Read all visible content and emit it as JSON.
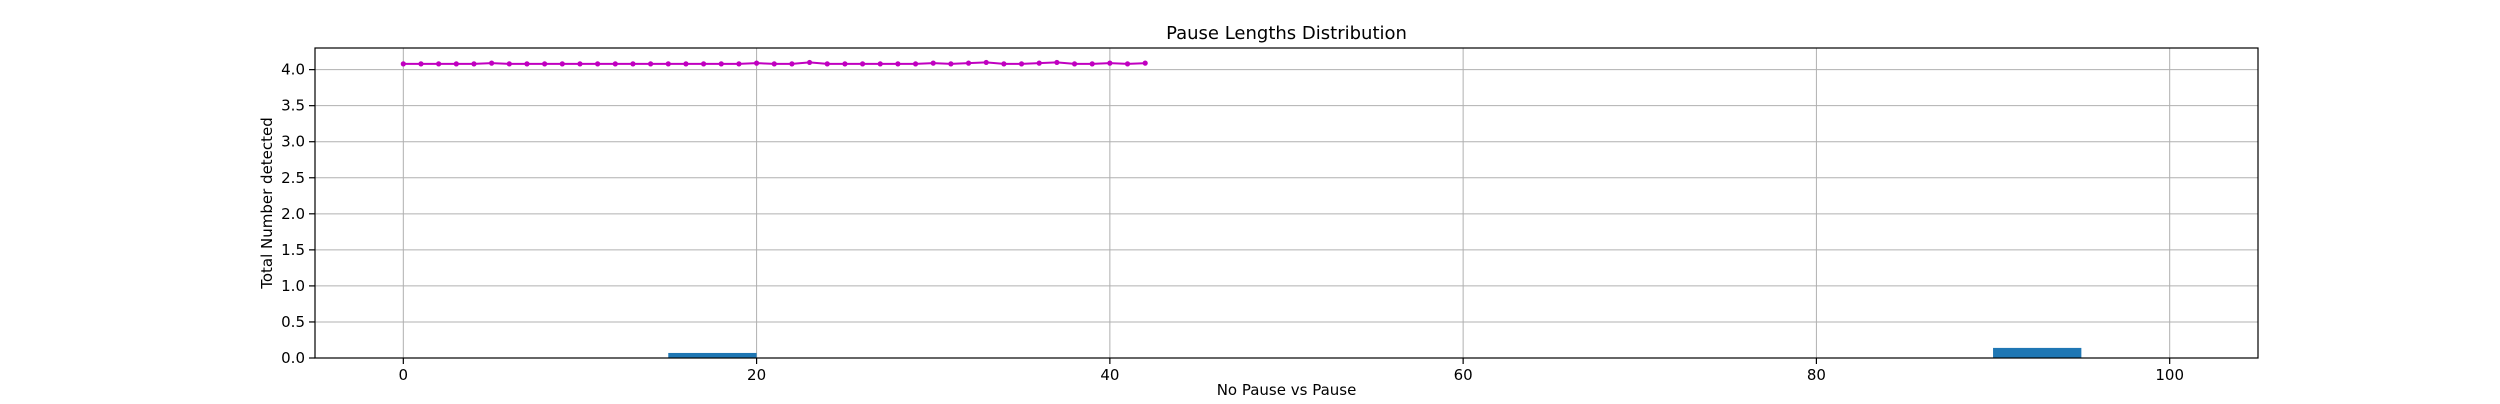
{
  "chart_data": {
    "type": "bar+line",
    "title": "Pause Lengths Distribution",
    "xlabel": "No Pause vs Pause",
    "ylabel": "Total Number detected",
    "xlim": [
      -5,
      105
    ],
    "ylim": [
      0,
      4.3
    ],
    "xticks": [
      0,
      20,
      40,
      60,
      80,
      100
    ],
    "xtick_labels": [
      "0",
      "20",
      "40",
      "60",
      "80",
      "100"
    ],
    "yticks": [
      0,
      0.5,
      1.0,
      1.5,
      2.0,
      2.5,
      3.0,
      3.5,
      4.0
    ],
    "ytick_labels": [
      "0.0",
      "0.5",
      "1.0",
      "1.5",
      "2.0",
      "2.5",
      "3.0",
      "3.5",
      "4.0"
    ],
    "grid": true,
    "bars": {
      "color": "#1f77b4",
      "width": 5,
      "items": [
        {
          "x": 17.5,
          "value": 0.07
        },
        {
          "x": 92.5,
          "value": 0.14
        }
      ]
    },
    "line": {
      "color": "#c000c0",
      "marker": "dot",
      "x": [
        0,
        1,
        2,
        3,
        4,
        5,
        6,
        7,
        8,
        9,
        10,
        11,
        12,
        13,
        14,
        15,
        16,
        17,
        18,
        19,
        20,
        21,
        22,
        23,
        24,
        25,
        26,
        27,
        28,
        29,
        30,
        31,
        32,
        33,
        34,
        35,
        36,
        37,
        38,
        39,
        40,
        41,
        42
      ],
      "values": [
        4.08,
        4.08,
        4.08,
        4.08,
        4.08,
        4.09,
        4.08,
        4.08,
        4.08,
        4.08,
        4.08,
        4.08,
        4.08,
        4.08,
        4.08,
        4.08,
        4.08,
        4.08,
        4.08,
        4.08,
        4.09,
        4.08,
        4.08,
        4.1,
        4.08,
        4.08,
        4.08,
        4.08,
        4.08,
        4.08,
        4.09,
        4.08,
        4.09,
        4.1,
        4.08,
        4.08,
        4.09,
        4.1,
        4.08,
        4.08,
        4.09,
        4.08,
        4.09
      ]
    }
  }
}
